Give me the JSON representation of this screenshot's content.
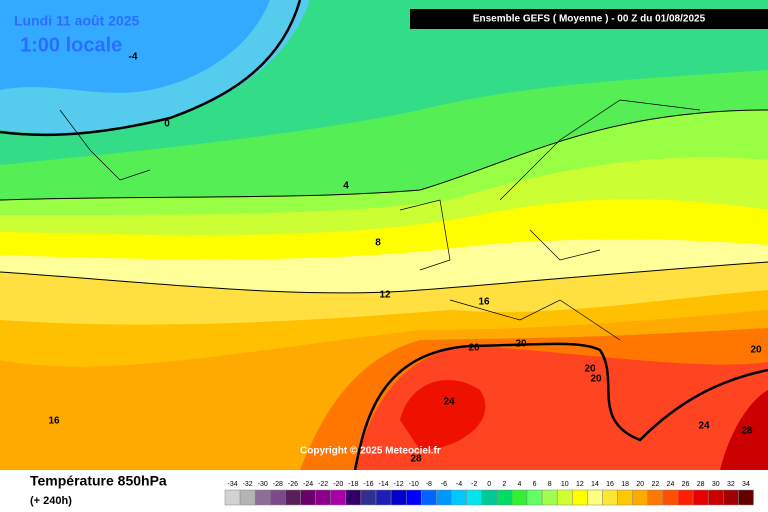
{
  "header": {
    "title": "Lundi 11 août 2025",
    "time": "1:00 locale",
    "run": "Ensemble GEFS  ( Moyenne )  -  00 Z du 01/08/2025"
  },
  "map": {
    "copyright": "Copyright © 2025 Meteociel.fr",
    "contour_labels": [
      -4,
      0,
      4,
      8,
      12,
      16,
      20,
      20,
      20,
      20,
      20,
      24,
      24,
      28,
      28,
      16
    ]
  },
  "footer": {
    "variable": "Température 850hPa",
    "lead": "(+ 240h)"
  },
  "colorbar": {
    "levels": [
      -34,
      -32,
      -30,
      -28,
      -26,
      -24,
      -22,
      -20,
      -18,
      -16,
      -14,
      -12,
      -10,
      -8,
      -6,
      -4,
      -2,
      0,
      2,
      4,
      6,
      8,
      10,
      12,
      14,
      16,
      18,
      20,
      22,
      24,
      26,
      28,
      30,
      32,
      34
    ],
    "colors": [
      "#d2d2d2",
      "#b4b4b4",
      "#8c6e96",
      "#7a4a8a",
      "#5a1e5a",
      "#6a006a",
      "#8a008a",
      "#aa00aa",
      "#320064",
      "#303090",
      "#1e1eb4",
      "#0000c8",
      "#0000ff",
      "#0064ff",
      "#0096ff",
      "#00c8ff",
      "#00e6f0",
      "#00c896",
      "#00dc64",
      "#32f032",
      "#64ff64",
      "#a0ff50",
      "#d2ff32",
      "#ffff00",
      "#ffff80",
      "#ffe632",
      "#ffc800",
      "#ffaa00",
      "#ff7800",
      "#ff5000",
      "#ff1e00",
      "#e60000",
      "#c80000",
      "#a00000",
      "#640000"
    ]
  }
}
